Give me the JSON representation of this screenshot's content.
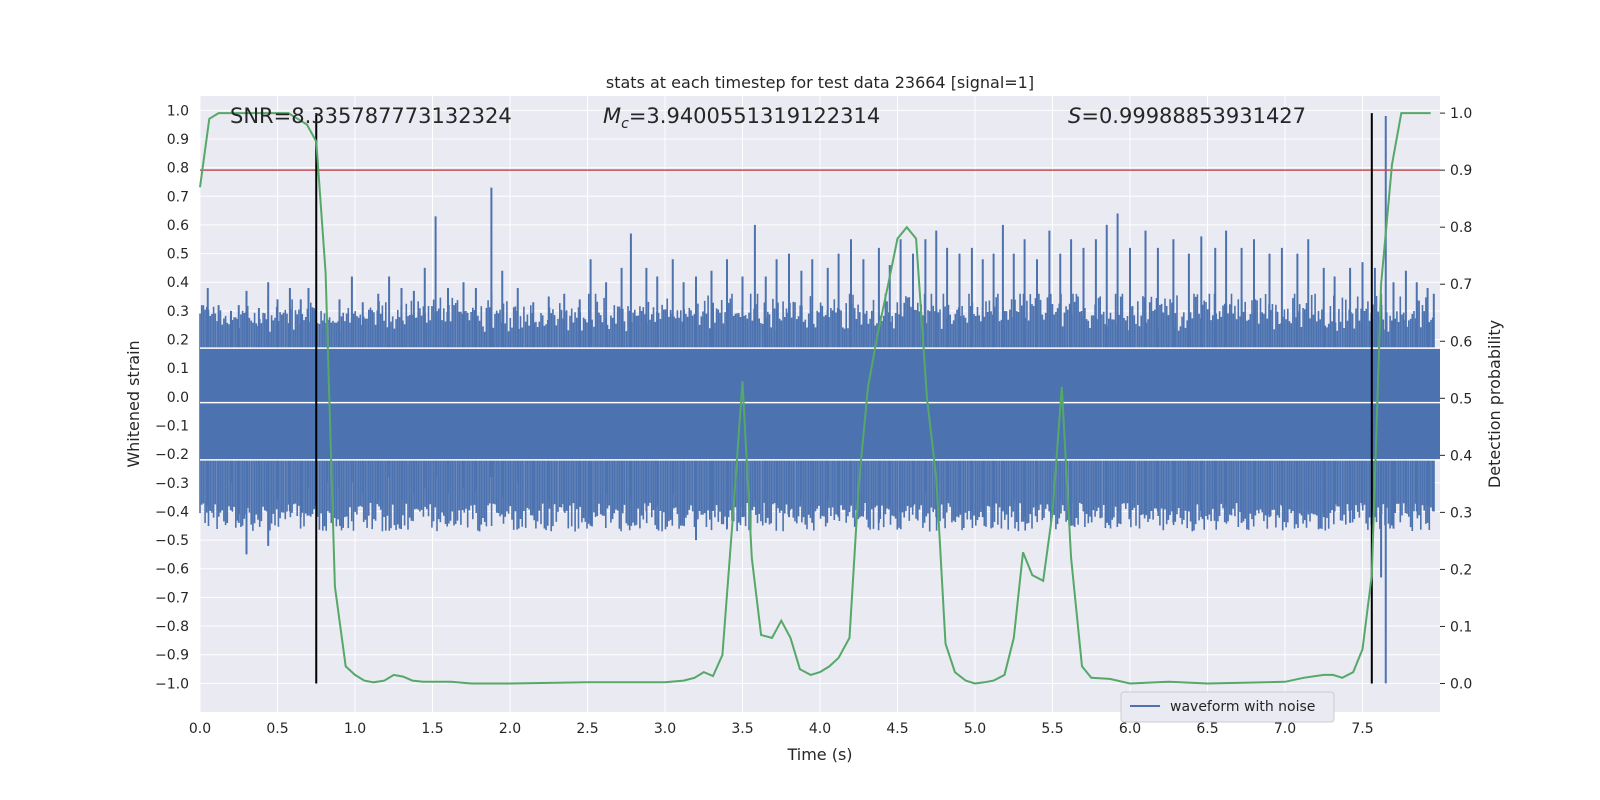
{
  "chart_data": {
    "type": "line",
    "title": "stats at each timestep for test data 23664 [signal=1]",
    "xlabel": "Time (s)",
    "ylabel_left": "Whitened strain",
    "ylabel_right": "Detection probability",
    "xlim": [
      0.0,
      8.0
    ],
    "ylim_left": [
      -1.1,
      1.05
    ],
    "ylim_right": [
      -0.05,
      1.03
    ],
    "x_ticks": [
      "0.0",
      "0.5",
      "1.0",
      "1.5",
      "2.0",
      "2.5",
      "3.0",
      "3.5",
      "4.0",
      "4.5",
      "5.0",
      "5.5",
      "6.0",
      "6.5",
      "7.0",
      "7.5"
    ],
    "y_ticks_left": [
      "1.0",
      "0.9",
      "0.8",
      "0.7",
      "0.6",
      "0.5",
      "0.4",
      "0.3",
      "0.2",
      "0.1",
      "0.0",
      "−0.1",
      "−0.2",
      "−0.3",
      "−0.4",
      "−0.5",
      "−0.6",
      "−0.7",
      "−0.8",
      "−0.9",
      "−1.0"
    ],
    "y_ticks_right": [
      "1.0",
      "0.9",
      "0.8",
      "0.7",
      "0.6",
      "0.5",
      "0.4",
      "0.3",
      "0.2",
      "0.1",
      "0.0"
    ],
    "grid": true,
    "annotations": {
      "snr": "SNR=8.335787773132324",
      "mc_symbol": "M",
      "mc_sub": "c",
      "mc_value": "=3.9400551319122314",
      "s_symbol": "S",
      "s_value": "=0.99988853931427"
    },
    "legend": {
      "position": "lower-right",
      "entries": [
        "waveform with noise"
      ]
    },
    "series": [
      {
        "name": "waveform with noise",
        "axis": "left",
        "color": "#4c72b0",
        "band_upper": 0.17,
        "band_lower": -0.22,
        "spikes": [
          [
            0.05,
            0.38,
            -0.38
          ],
          [
            0.12,
            0.32,
            -0.4
          ],
          [
            0.2,
            0.3,
            -0.3
          ],
          [
            0.25,
            0.32,
            -0.44
          ],
          [
            0.3,
            0.37,
            -0.55
          ],
          [
            0.38,
            0.31,
            -0.42
          ],
          [
            0.44,
            0.4,
            -0.52
          ],
          [
            0.5,
            0.34,
            -0.36
          ],
          [
            0.58,
            0.38,
            -0.4
          ],
          [
            0.65,
            0.34,
            -0.42
          ],
          [
            0.7,
            0.38,
            -0.32
          ],
          [
            0.82,
            0.27,
            -0.3
          ],
          [
            0.9,
            0.34,
            -0.32
          ],
          [
            0.98,
            0.42,
            -0.3
          ],
          [
            1.05,
            0.33,
            -0.34
          ],
          [
            1.15,
            0.36,
            -0.36
          ],
          [
            1.22,
            0.42,
            -0.28
          ],
          [
            1.3,
            0.38,
            -0.36
          ],
          [
            1.38,
            0.37,
            -0.34
          ],
          [
            1.45,
            0.45,
            -0.32
          ],
          [
            1.52,
            0.63,
            -0.28
          ],
          [
            1.6,
            0.38,
            -0.34
          ],
          [
            1.7,
            0.4,
            -0.32
          ],
          [
            1.78,
            0.38,
            -0.33
          ],
          [
            1.88,
            0.73,
            -0.28
          ],
          [
            1.95,
            0.44,
            -0.35
          ],
          [
            2.05,
            0.38,
            -0.3
          ],
          [
            2.15,
            0.33,
            -0.4
          ],
          [
            2.25,
            0.35,
            -0.36
          ],
          [
            2.35,
            0.36,
            -0.4
          ],
          [
            2.45,
            0.34,
            -0.38
          ],
          [
            2.52,
            0.48,
            -0.45
          ],
          [
            2.62,
            0.4,
            -0.34
          ],
          [
            2.72,
            0.45,
            -0.4
          ],
          [
            2.78,
            0.57,
            -0.36
          ],
          [
            2.88,
            0.45,
            -0.4
          ],
          [
            2.95,
            0.42,
            -0.38
          ],
          [
            3.05,
            0.48,
            -0.34
          ],
          [
            3.12,
            0.4,
            -0.42
          ],
          [
            3.2,
            0.42,
            -0.5
          ],
          [
            3.3,
            0.44,
            -0.4
          ],
          [
            3.4,
            0.48,
            -0.46
          ],
          [
            3.5,
            0.42,
            -0.42
          ],
          [
            3.58,
            0.6,
            -0.36
          ],
          [
            3.65,
            0.42,
            -0.44
          ],
          [
            3.72,
            0.48,
            -0.38
          ],
          [
            3.8,
            0.5,
            -0.42
          ],
          [
            3.88,
            0.44,
            -0.36
          ],
          [
            3.95,
            0.48,
            -0.44
          ],
          [
            4.05,
            0.45,
            -0.36
          ],
          [
            4.12,
            0.5,
            -0.42
          ],
          [
            4.2,
            0.55,
            -0.38
          ],
          [
            4.28,
            0.48,
            -0.4
          ],
          [
            4.38,
            0.52,
            -0.44
          ],
          [
            4.45,
            0.46,
            -0.38
          ],
          [
            4.52,
            0.55,
            -0.4
          ],
          [
            4.6,
            0.5,
            -0.38
          ],
          [
            4.68,
            0.55,
            -0.34
          ],
          [
            4.75,
            0.58,
            -0.42
          ],
          [
            4.82,
            0.52,
            -0.36
          ],
          [
            4.9,
            0.5,
            -0.4
          ],
          [
            4.98,
            0.52,
            -0.4
          ],
          [
            5.05,
            0.48,
            -0.42
          ],
          [
            5.12,
            0.5,
            -0.38
          ],
          [
            5.18,
            0.6,
            -0.4
          ],
          [
            5.25,
            0.5,
            -0.36
          ],
          [
            5.32,
            0.55,
            -0.42
          ],
          [
            5.4,
            0.48,
            -0.38
          ],
          [
            5.48,
            0.58,
            -0.4
          ],
          [
            5.55,
            0.5,
            -0.36
          ],
          [
            5.62,
            0.55,
            -0.45
          ],
          [
            5.7,
            0.52,
            -0.4
          ],
          [
            5.78,
            0.55,
            -0.38
          ],
          [
            5.85,
            0.6,
            -0.44
          ],
          [
            5.92,
            0.64,
            -0.4
          ],
          [
            6.0,
            0.52,
            -0.42
          ],
          [
            6.1,
            0.58,
            -0.4
          ],
          [
            6.18,
            0.52,
            -0.4
          ],
          [
            6.28,
            0.55,
            -0.44
          ],
          [
            6.38,
            0.5,
            -0.4
          ],
          [
            6.46,
            0.56,
            -0.42
          ],
          [
            6.55,
            0.52,
            -0.4
          ],
          [
            6.62,
            0.58,
            -0.38
          ],
          [
            6.72,
            0.52,
            -0.44
          ],
          [
            6.8,
            0.55,
            -0.4
          ],
          [
            6.9,
            0.5,
            -0.42
          ],
          [
            6.98,
            0.52,
            -0.38
          ],
          [
            7.08,
            0.5,
            -0.4
          ],
          [
            7.15,
            0.55,
            -0.4
          ],
          [
            7.25,
            0.45,
            -0.42
          ],
          [
            7.32,
            0.42,
            -0.4
          ],
          [
            7.42,
            0.45,
            -0.44
          ],
          [
            7.5,
            0.47,
            -0.38
          ],
          [
            7.58,
            0.45,
            -0.42
          ],
          [
            7.62,
            0.36,
            -0.63
          ],
          [
            7.65,
            0.98,
            -1.0
          ],
          [
            7.7,
            0.4,
            -0.46
          ],
          [
            7.78,
            0.44,
            -0.38
          ],
          [
            7.85,
            0.4,
            -0.4
          ],
          [
            7.92,
            0.38,
            -0.38
          ],
          [
            7.96,
            0.36,
            -0.4
          ]
        ]
      },
      {
        "name": "",
        "axis": "right",
        "color": "#55a868",
        "x": [
          0.0,
          0.06,
          0.12,
          0.2,
          0.3,
          0.4,
          0.5,
          0.57,
          0.63,
          0.69,
          0.75,
          0.81,
          0.87,
          0.94,
          1.0,
          1.06,
          1.12,
          1.19,
          1.25,
          1.31,
          1.37,
          1.44,
          1.5,
          1.62,
          1.75,
          2.0,
          2.5,
          3.0,
          3.12,
          3.19,
          3.25,
          3.31,
          3.37,
          3.44,
          3.5,
          3.56,
          3.62,
          3.69,
          3.75,
          3.81,
          3.87,
          3.94,
          4.0,
          4.06,
          4.12,
          4.19,
          4.25,
          4.31,
          4.37,
          4.44,
          4.5,
          4.56,
          4.62,
          4.69,
          4.75,
          4.81,
          4.87,
          4.94,
          5.0,
          5.06,
          5.12,
          5.19,
          5.25,
          5.31,
          5.37,
          5.44,
          5.5,
          5.56,
          5.62,
          5.69,
          5.75,
          5.87,
          6.0,
          6.25,
          6.5,
          7.0,
          7.12,
          7.25,
          7.31,
          7.37,
          7.44,
          7.5,
          7.56,
          7.62,
          7.69,
          7.75,
          7.94
        ],
        "y": [
          0.87,
          0.99,
          1.0,
          1.0,
          1.0,
          1.0,
          1.0,
          1.0,
          0.99,
          0.98,
          0.95,
          0.72,
          0.17,
          0.03,
          0.015,
          0.005,
          0.002,
          0.005,
          0.015,
          0.012,
          0.005,
          0.003,
          0.003,
          0.003,
          0.0,
          0.0,
          0.002,
          0.002,
          0.005,
          0.01,
          0.02,
          0.013,
          0.05,
          0.3,
          0.53,
          0.22,
          0.085,
          0.08,
          0.11,
          0.08,
          0.025,
          0.015,
          0.02,
          0.03,
          0.045,
          0.08,
          0.35,
          0.52,
          0.61,
          0.7,
          0.78,
          0.8,
          0.78,
          0.5,
          0.36,
          0.07,
          0.02,
          0.005,
          0.0,
          0.002,
          0.005,
          0.015,
          0.08,
          0.23,
          0.19,
          0.18,
          0.3,
          0.52,
          0.22,
          0.03,
          0.01,
          0.008,
          0.0,
          0.003,
          0.0,
          0.003,
          0.01,
          0.015,
          0.015,
          0.01,
          0.02,
          0.06,
          0.19,
          0.7,
          0.91,
          1.0,
          1.0
        ]
      }
    ],
    "threshold_line": {
      "axis": "right",
      "value": 0.9,
      "color": "#c44e52"
    },
    "vertical_lines": [
      0.75,
      7.56
    ],
    "white_hlines_left": [
      0.17,
      -0.02,
      -0.22
    ]
  }
}
